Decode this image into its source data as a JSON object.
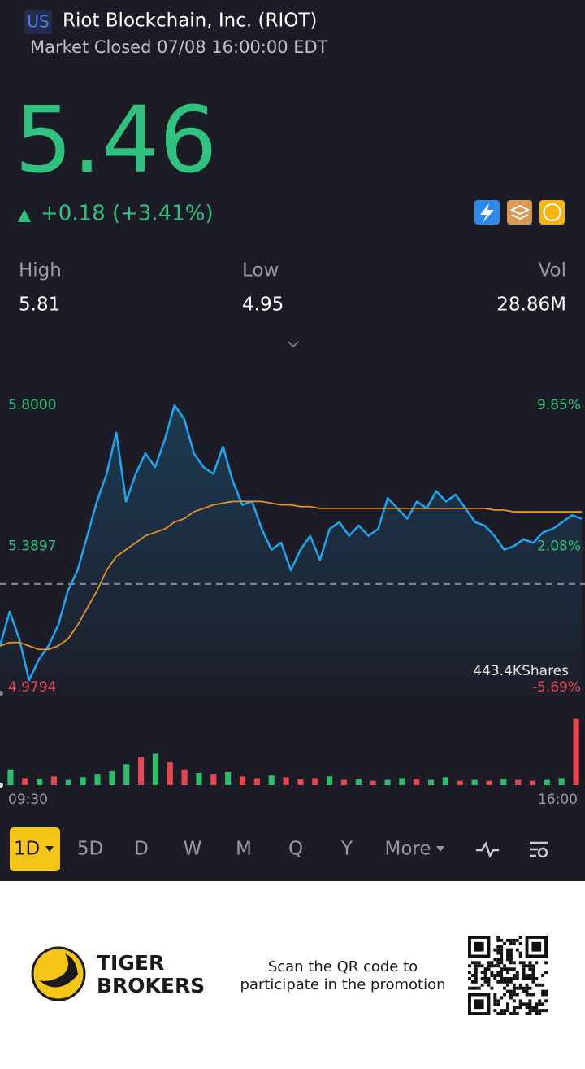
{
  "header": {
    "market": "US",
    "name": "Riot Blockchain, Inc. (RIOT)",
    "status": "Market Closed 07/08 16:00:00 EDT"
  },
  "quote": {
    "price": "5.46",
    "change": "+0.18 (+3.41%)"
  },
  "stats": [
    {
      "label": "High",
      "value": "5.81"
    },
    {
      "label": "Low",
      "value": "4.95"
    },
    {
      "label": "Vol",
      "value": "28.86M"
    }
  ],
  "chart_data": [
    {
      "type": "line",
      "x": [
        0,
        6.5,
        13,
        19.5,
        26,
        32.5,
        39,
        45.5,
        52,
        58.5,
        65,
        71.5,
        78,
        84.5,
        91,
        97.5,
        104,
        110.5,
        117,
        123.5,
        130,
        136.5,
        143,
        149.5,
        156,
        162.5,
        169,
        175.5,
        182,
        188.5,
        195,
        201.5,
        208,
        214.5,
        221,
        227.5,
        234,
        240.5,
        247,
        253.5,
        260,
        266.5,
        273,
        279.5,
        286,
        292.5,
        299,
        305.5,
        312,
        318.5,
        325,
        331.5,
        338,
        344.5,
        351,
        357.5,
        364,
        370.5,
        377,
        383.5,
        390
      ],
      "series": [
        {
          "color": "#1ea7f2",
          "values": [
            5.1,
            5.2,
            5.12,
            5.0,
            5.06,
            5.1,
            5.16,
            5.26,
            5.32,
            5.42,
            5.52,
            5.6,
            5.72,
            5.52,
            5.6,
            5.66,
            5.62,
            5.7,
            5.8,
            5.76,
            5.66,
            5.62,
            5.6,
            5.68,
            5.58,
            5.51,
            5.52,
            5.44,
            5.38,
            5.4,
            5.32,
            5.38,
            5.42,
            5.35,
            5.44,
            5.46,
            5.42,
            5.45,
            5.42,
            5.44,
            5.53,
            5.5,
            5.47,
            5.52,
            5.5,
            5.55,
            5.52,
            5.54,
            5.5,
            5.46,
            5.45,
            5.42,
            5.38,
            5.39,
            5.41,
            5.4,
            5.43,
            5.44,
            5.46,
            5.48,
            5.47
          ]
        },
        {
          "color": "#e8902a",
          "values": [
            5.1,
            5.11,
            5.11,
            5.1,
            5.09,
            5.09,
            5.1,
            5.12,
            5.16,
            5.21,
            5.26,
            5.32,
            5.36,
            5.38,
            5.4,
            5.42,
            5.43,
            5.44,
            5.46,
            5.47,
            5.49,
            5.5,
            5.51,
            5.515,
            5.52,
            5.52,
            5.52,
            5.52,
            5.515,
            5.51,
            5.51,
            5.505,
            5.505,
            5.5,
            5.5,
            5.5,
            5.5,
            5.5,
            5.5,
            5.5,
            5.5,
            5.5,
            5.5,
            5.5,
            5.5,
            5.5,
            5.5,
            5.5,
            5.5,
            5.5,
            5.5,
            5.495,
            5.495,
            5.49,
            5.49,
            5.49,
            5.49,
            5.49,
            5.49,
            5.49,
            5.49
          ]
        }
      ],
      "prev_close": 5.28,
      "xlim": [
        0,
        390
      ],
      "xticks": [
        {
          "value": 0,
          "label": "09:30"
        },
        {
          "value": 390,
          "label": "16:00"
        }
      ],
      "ylim": [
        4.9794,
        5.8
      ],
      "yticks": [
        {
          "value": 5.8,
          "label": "5.8000"
        },
        {
          "value": 5.3897,
          "label": "5.3897"
        },
        {
          "value": 4.9794,
          "label": "4.9794"
        }
      ],
      "y2lim": [
        -5.69,
        9.85
      ],
      "y2ticks": [
        {
          "value": 9.85,
          "label": "9.85%"
        },
        {
          "value": 2.08,
          "label": "2.08%"
        },
        {
          "value": -5.69,
          "label": "-5.69%"
        }
      ]
    },
    {
      "type": "bar",
      "label": "443.4KShares",
      "ylim": [
        0,
        443400
      ],
      "values": [
        90000,
        40000,
        35000,
        50000,
        30000,
        45000,
        60000,
        80000,
        120000,
        160000,
        180000,
        130000,
        90000,
        70000,
        60000,
        75000,
        50000,
        40000,
        55000,
        45000,
        35000,
        40000,
        50000,
        30000,
        35000,
        25000,
        30000,
        40000,
        35000,
        30000,
        45000,
        25000,
        30000,
        25000,
        35000,
        30000,
        25000,
        30000,
        40000,
        380000
      ],
      "colors": [
        "#2ebd6b",
        "#e8464e",
        "#2ebd6b",
        "#e8464e",
        "#2ebd6b",
        "#2ebd6b",
        "#2ebd6b",
        "#2ebd6b",
        "#2ebd6b",
        "#e8464e",
        "#2ebd6b",
        "#e8464e",
        "#e8464e",
        "#2ebd6b",
        "#e8464e",
        "#2ebd6b",
        "#e8464e",
        "#e8464e",
        "#2ebd6b",
        "#e8464e",
        "#e8464e",
        "#e8464e",
        "#2ebd6b",
        "#e8464e",
        "#2ebd6b",
        "#e8464e",
        "#2ebd6b",
        "#2ebd6b",
        "#e8464e",
        "#2ebd6b",
        "#2ebd6b",
        "#e8464e",
        "#2ebd6b",
        "#e8464e",
        "#2ebd6b",
        "#e8464e",
        "#e8464e",
        "#2ebd6b",
        "#2ebd6b",
        "#e8464e"
      ]
    }
  ],
  "tabs": [
    "1D",
    "5D",
    "D",
    "W",
    "M",
    "Q",
    "Y",
    "More"
  ],
  "footer": {
    "brand": [
      "TIGER",
      "BROKERS"
    ],
    "promo": [
      "Scan the QR code to",
      "participate in the promotion"
    ]
  }
}
